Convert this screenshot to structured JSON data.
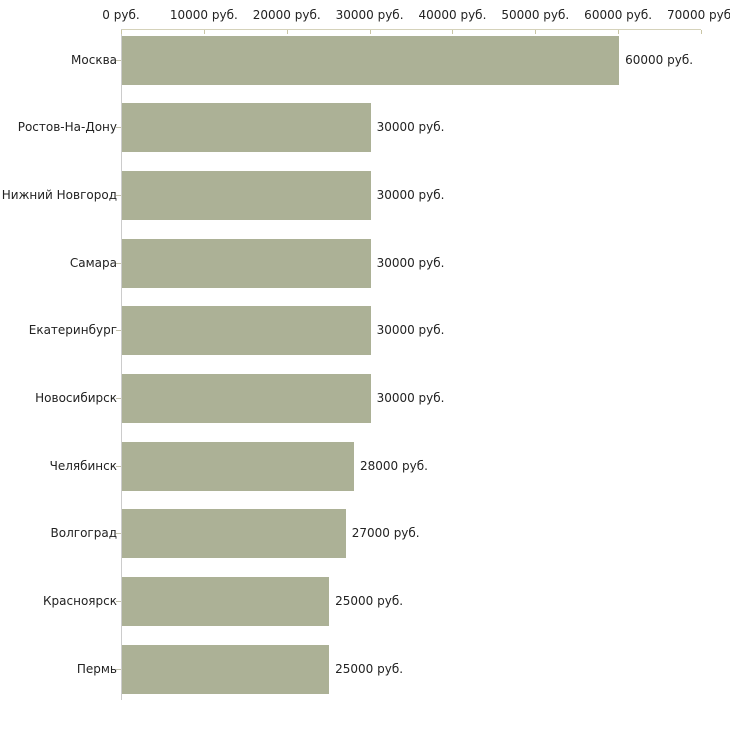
{
  "chart_data": {
    "type": "bar",
    "orientation": "horizontal",
    "title": "",
    "xlabel": "",
    "ylabel": "",
    "categories": [
      "Москва",
      "Ростов-На-Дону",
      "Нижний Новгород",
      "Самара",
      "Екатеринбург",
      "Новосибирск",
      "Челябинск",
      "Волгоград",
      "Красноярск",
      "Пермь"
    ],
    "values": [
      60000,
      30000,
      30000,
      30000,
      30000,
      30000,
      28000,
      27000,
      25000,
      25000
    ],
    "value_labels": [
      "60000 руб.",
      "30000 руб.",
      "30000 руб.",
      "30000 руб.",
      "30000 руб.",
      "30000 руб.",
      "28000 руб.",
      "27000 руб.",
      "25000 руб.",
      "25000 руб."
    ],
    "x_ticks": [
      0,
      10000,
      20000,
      30000,
      40000,
      50000,
      60000,
      70000
    ],
    "x_tick_labels": [
      "0 руб.",
      "10000 руб.",
      "20000 руб.",
      "30000 руб.",
      "40000 руб.",
      "50000 руб.",
      "60000 руб.",
      "70000 руб."
    ],
    "xlim": [
      0,
      70000
    ],
    "grid": false,
    "legend": false,
    "unit_suffix": " руб."
  },
  "colors": {
    "bar": "#acb196",
    "x_axis_line": "#d5d2ba",
    "x_tick": "#c9c5a5",
    "y_axis_line": "#cccccc",
    "y_tick": "#c4c2ad",
    "text": "#222222",
    "background": "#ffffff"
  }
}
